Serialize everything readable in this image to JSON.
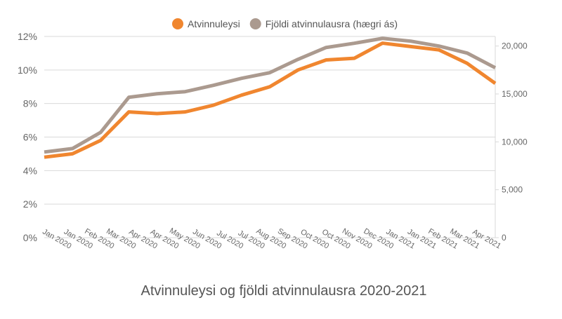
{
  "chart_data": {
    "type": "line",
    "title": "Atvinnuleysi og fjöldi atvinnulausra 2020-2021",
    "x": [
      0,
      1,
      2,
      3,
      4,
      5,
      6,
      7,
      8,
      9,
      10,
      11,
      12,
      13,
      14,
      15,
      16
    ],
    "xlim": [
      0,
      16
    ],
    "xticks": [
      {
        "value": 0,
        "label": "Jan 2020"
      },
      {
        "value": 0.76,
        "label": "Jan 2020"
      },
      {
        "value": 1.52,
        "label": "Feb 2020"
      },
      {
        "value": 2.29,
        "label": "Mar 2020"
      },
      {
        "value": 3.05,
        "label": "Apr 2020"
      },
      {
        "value": 3.81,
        "label": "Apr 2020"
      },
      {
        "value": 4.57,
        "label": "May 2020"
      },
      {
        "value": 5.33,
        "label": "Jun 2020"
      },
      {
        "value": 6.1,
        "label": "Jul 2020"
      },
      {
        "value": 6.86,
        "label": "Jul 2020"
      },
      {
        "value": 7.62,
        "label": "Aug 2020"
      },
      {
        "value": 8.38,
        "label": "Sep 2020"
      },
      {
        "value": 9.14,
        "label": "Oct 2020"
      },
      {
        "value": 9.9,
        "label": "Oct 2020"
      },
      {
        "value": 10.67,
        "label": "Nov 2020"
      },
      {
        "value": 11.43,
        "label": "Dec 2020"
      },
      {
        "value": 12.19,
        "label": "Jan 2021"
      },
      {
        "value": 12.95,
        "label": "Jan 2021"
      },
      {
        "value": 13.71,
        "label": "Feb 2021"
      },
      {
        "value": 14.48,
        "label": "Mar 2021"
      },
      {
        "value": 15.24,
        "label": "Apr 2021"
      }
    ],
    "ylim": [
      0,
      12
    ],
    "yticks": [
      {
        "value": 0,
        "label": "0%"
      },
      {
        "value": 2,
        "label": "2%"
      },
      {
        "value": 4,
        "label": "4%"
      },
      {
        "value": 6,
        "label": "6%"
      },
      {
        "value": 8,
        "label": "8%"
      },
      {
        "value": 10,
        "label": "10%"
      },
      {
        "value": 12,
        "label": "12%"
      }
    ],
    "y2lim": [
      0,
      21000
    ],
    "y2ticks": [
      0,
      {
        "value": 5000,
        "label": "5,000"
      },
      {
        "value": 10000,
        "label": "10,000"
      },
      {
        "value": 15000,
        "label": "15,000"
      },
      {
        "value": 20000,
        "label": "20,000"
      }
    ],
    "grid": true,
    "legend": "top",
    "series": [
      {
        "name": "Atvinnuleysi",
        "color": "#f0862f",
        "values": [
          4.8,
          5.0,
          5.8,
          7.5,
          7.4,
          7.5,
          7.9,
          8.5,
          9.0,
          10.0,
          10.6,
          10.7,
          11.6,
          11.4,
          11.2,
          10.4,
          9.2
        ]
      },
      {
        "name": "Fjöldi atvinnulausra (hægri ás)",
        "color": "#ab9a8f",
        "axis": "y2",
        "values": [
          8940,
          9300,
          10990,
          14650,
          15020,
          15240,
          15900,
          16630,
          17220,
          18610,
          19850,
          20290,
          20800,
          20510,
          20000,
          19270,
          17730
        ]
      }
    ]
  }
}
